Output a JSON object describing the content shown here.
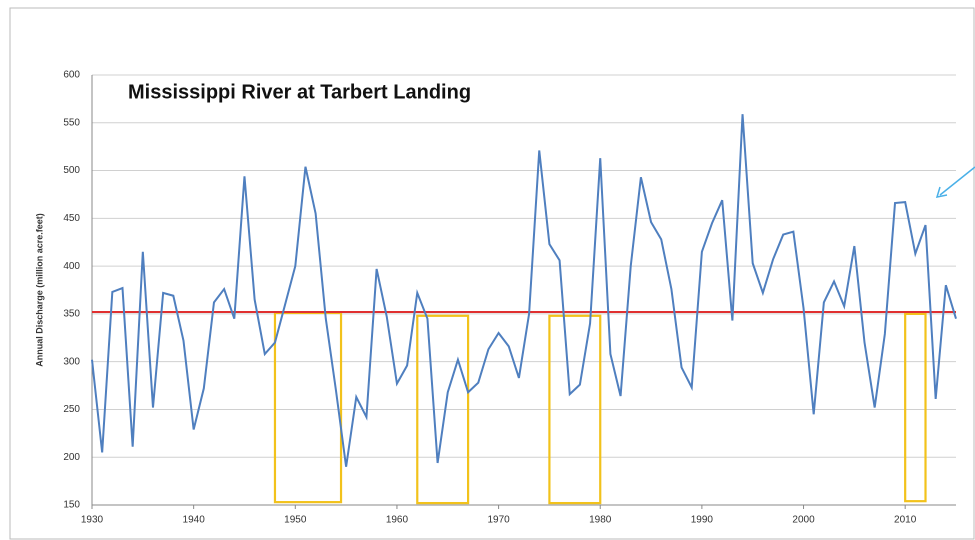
{
  "chart_data": {
    "type": "line",
    "title": "Mississippi River at Tarbert Landing",
    "y_label": "Annual Discharge (million acre.feet)",
    "x": [
      1930,
      1931,
      1932,
      1933,
      1934,
      1935,
      1936,
      1937,
      1938,
      1939,
      1940,
      1941,
      1942,
      1943,
      1944,
      1945,
      1946,
      1947,
      1948,
      1949,
      1950,
      1951,
      1952,
      1953,
      1954,
      1955,
      1956,
      1957,
      1958,
      1959,
      1960,
      1961,
      1962,
      1963,
      1964,
      1965,
      1966,
      1967,
      1968,
      1969,
      1970,
      1971,
      1972,
      1973,
      1974,
      1975,
      1976,
      1977,
      1978,
      1979,
      1980,
      1981,
      1982,
      1983,
      1984,
      1985,
      1986,
      1987,
      1988,
      1989,
      1990,
      1991,
      1992,
      1993,
      1994,
      1995,
      1996,
      1997,
      1998,
      1999,
      2000,
      2001,
      2002,
      2003,
      2004,
      2005,
      2006,
      2007,
      2008,
      2009,
      2010,
      2011,
      2012,
      2013,
      2014,
      2015
    ],
    "series": [
      {
        "color": "#4f7fbf",
        "values": [
          302,
          205,
          373,
          377,
          211,
          415,
          252,
          372,
          369,
          322,
          229,
          272,
          362,
          376,
          345,
          494,
          365,
          308,
          320,
          360,
          400,
          504,
          455,
          345,
          270,
          190,
          263,
          242,
          397,
          347,
          277,
          296,
          372,
          345,
          194,
          268,
          302,
          268,
          278,
          313,
          330,
          316,
          283,
          350,
          521,
          423,
          406,
          266,
          276,
          340,
          513,
          308,
          264,
          400,
          493,
          446,
          428,
          376,
          294,
          273,
          415,
          445,
          469,
          343,
          559,
          403,
          372,
          407,
          433,
          436,
          356,
          245,
          362,
          384,
          358,
          421,
          320,
          252,
          329,
          466,
          467,
          413,
          443,
          261,
          380,
          345
        ]
      }
    ],
    "reference_line": {
      "value": 352,
      "color": "#e03030"
    },
    "highlight_boxes": {
      "color": "#f2c21b",
      "boxes": [
        {
          "x": [
            1948,
            1954.5
          ],
          "y": [
            153,
            351
          ]
        },
        {
          "x": [
            1962,
            1967
          ],
          "y": [
            152,
            348
          ]
        },
        {
          "x": [
            1975,
            1980
          ],
          "y": [
            152,
            348
          ]
        },
        {
          "x": [
            2010,
            2012
          ],
          "y": [
            154,
            350
          ]
        }
      ]
    },
    "xlim": [
      1930,
      2015
    ],
    "xticks": [
      1930,
      1940,
      1950,
      1960,
      1970,
      1980,
      1990,
      2000,
      2010
    ],
    "ylim": [
      150,
      600
    ],
    "yticks": [
      150,
      200,
      250,
      300,
      350,
      400,
      450,
      500,
      550,
      600
    ],
    "grid": true
  }
}
